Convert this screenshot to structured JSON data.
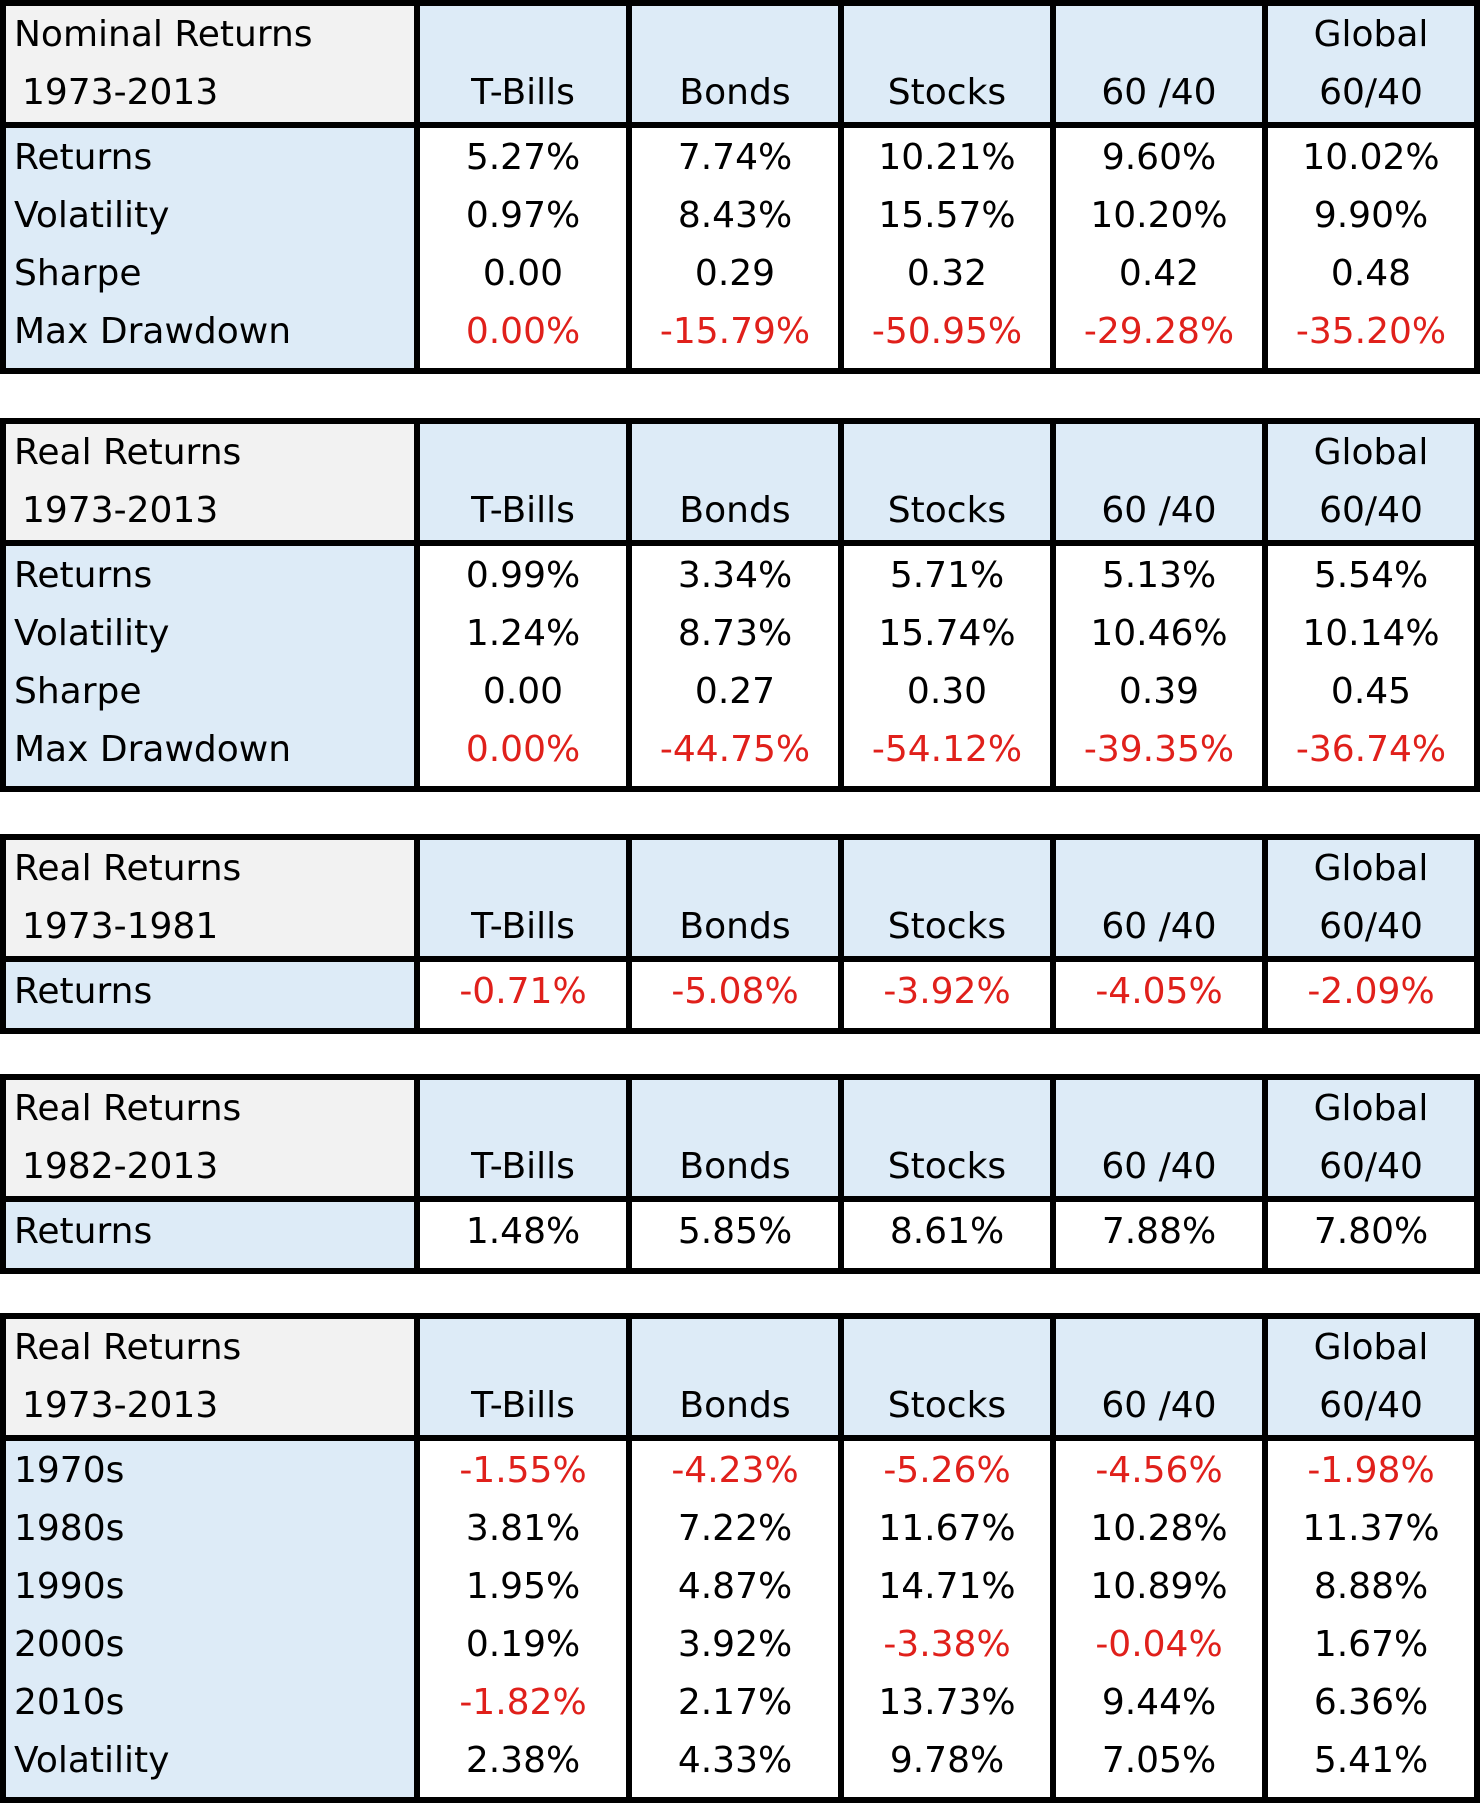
{
  "tables": [
    {
      "title_line1": "Nominal Returns",
      "title_line2": "1973-2013",
      "columns": [
        {
          "line1": "",
          "line2": "T-Bills"
        },
        {
          "line1": "",
          "line2": "Bonds"
        },
        {
          "line1": "",
          "line2": "Stocks"
        },
        {
          "line1": "",
          "line2": "60 /40"
        },
        {
          "line1": "Global",
          "line2": "60/40"
        }
      ],
      "rows": [
        {
          "label": "Returns",
          "values": [
            "5.27%",
            "7.74%",
            "10.21%",
            "9.60%",
            "10.02%"
          ],
          "red": [
            false,
            false,
            false,
            false,
            false
          ]
        },
        {
          "label": "Volatility",
          "values": [
            "0.97%",
            "8.43%",
            "15.57%",
            "10.20%",
            "9.90%"
          ],
          "red": [
            false,
            false,
            false,
            false,
            false
          ]
        },
        {
          "label": "Sharpe",
          "values": [
            "0.00",
            "0.29",
            "0.32",
            "0.42",
            "0.48"
          ],
          "red": [
            false,
            false,
            false,
            false,
            false
          ]
        },
        {
          "label": "Max Drawdown",
          "values": [
            "0.00%",
            "-15.79%",
            "-50.95%",
            "-29.28%",
            "-35.20%"
          ],
          "red": [
            true,
            true,
            true,
            true,
            true
          ]
        }
      ]
    },
    {
      "title_line1": "Real Returns",
      "title_line2": "1973-2013",
      "columns": [
        {
          "line1": "",
          "line2": "T-Bills"
        },
        {
          "line1": "",
          "line2": "Bonds"
        },
        {
          "line1": "",
          "line2": "Stocks"
        },
        {
          "line1": "",
          "line2": "60 /40"
        },
        {
          "line1": "Global",
          "line2": "60/40"
        }
      ],
      "rows": [
        {
          "label": "Returns",
          "values": [
            "0.99%",
            "3.34%",
            "5.71%",
            "5.13%",
            "5.54%"
          ],
          "red": [
            false,
            false,
            false,
            false,
            false
          ]
        },
        {
          "label": "Volatility",
          "values": [
            "1.24%",
            "8.73%",
            "15.74%",
            "10.46%",
            "10.14%"
          ],
          "red": [
            false,
            false,
            false,
            false,
            false
          ]
        },
        {
          "label": "Sharpe",
          "values": [
            "0.00",
            "0.27",
            "0.30",
            "0.39",
            "0.45"
          ],
          "red": [
            false,
            false,
            false,
            false,
            false
          ]
        },
        {
          "label": "Max Drawdown",
          "values": [
            "0.00%",
            "-44.75%",
            "-54.12%",
            "-39.35%",
            "-36.74%"
          ],
          "red": [
            true,
            true,
            true,
            true,
            true
          ]
        }
      ]
    },
    {
      "title_line1": "Real Returns",
      "title_line2": "1973-1981",
      "columns": [
        {
          "line1": "",
          "line2": "T-Bills"
        },
        {
          "line1": "",
          "line2": "Bonds"
        },
        {
          "line1": "",
          "line2": "Stocks"
        },
        {
          "line1": "",
          "line2": "60 /40"
        },
        {
          "line1": "Global",
          "line2": "60/40"
        }
      ],
      "rows": [
        {
          "label": "Returns",
          "values": [
            "-0.71%",
            "-5.08%",
            "-3.92%",
            "-4.05%",
            "-2.09%"
          ],
          "red": [
            true,
            true,
            true,
            true,
            true
          ]
        }
      ]
    },
    {
      "title_line1": "Real Returns",
      "title_line2": "1982-2013",
      "columns": [
        {
          "line1": "",
          "line2": "T-Bills"
        },
        {
          "line1": "",
          "line2": "Bonds"
        },
        {
          "line1": "",
          "line2": "Stocks"
        },
        {
          "line1": "",
          "line2": "60 /40"
        },
        {
          "line1": "Global",
          "line2": "60/40"
        }
      ],
      "rows": [
        {
          "label": "Returns",
          "values": [
            "1.48%",
            "5.85%",
            "8.61%",
            "7.88%",
            "7.80%"
          ],
          "red": [
            false,
            false,
            false,
            false,
            false
          ]
        }
      ]
    },
    {
      "title_line1": "Real Returns",
      "title_line2": "1973-2013",
      "columns": [
        {
          "line1": "",
          "line2": "T-Bills"
        },
        {
          "line1": "",
          "line2": "Bonds"
        },
        {
          "line1": "",
          "line2": "Stocks"
        },
        {
          "line1": "",
          "line2": "60 /40"
        },
        {
          "line1": "Global",
          "line2": "60/40"
        }
      ],
      "rows": [
        {
          "label": "1970s",
          "values": [
            "-1.55%",
            "-4.23%",
            "-5.26%",
            "-4.56%",
            "-1.98%"
          ],
          "red": [
            true,
            true,
            true,
            true,
            true
          ]
        },
        {
          "label": "1980s",
          "values": [
            "3.81%",
            "7.22%",
            "11.67%",
            "10.28%",
            "11.37%"
          ],
          "red": [
            false,
            false,
            false,
            false,
            false
          ]
        },
        {
          "label": "1990s",
          "values": [
            "1.95%",
            "4.87%",
            "14.71%",
            "10.89%",
            "8.88%"
          ],
          "red": [
            false,
            false,
            false,
            false,
            false
          ]
        },
        {
          "label": "2000s",
          "values": [
            "0.19%",
            "3.92%",
            "-3.38%",
            "-0.04%",
            "1.67%"
          ],
          "red": [
            false,
            false,
            true,
            true,
            false
          ]
        },
        {
          "label": "2010s",
          "values": [
            "-1.82%",
            "2.17%",
            "13.73%",
            "9.44%",
            "6.36%"
          ],
          "red": [
            true,
            false,
            false,
            false,
            false
          ]
        },
        {
          "label": "Volatility",
          "values": [
            "2.38%",
            "4.33%",
            "9.78%",
            "7.05%",
            "5.41%"
          ],
          "red": [
            false,
            false,
            false,
            false,
            false
          ]
        }
      ]
    }
  ]
}
